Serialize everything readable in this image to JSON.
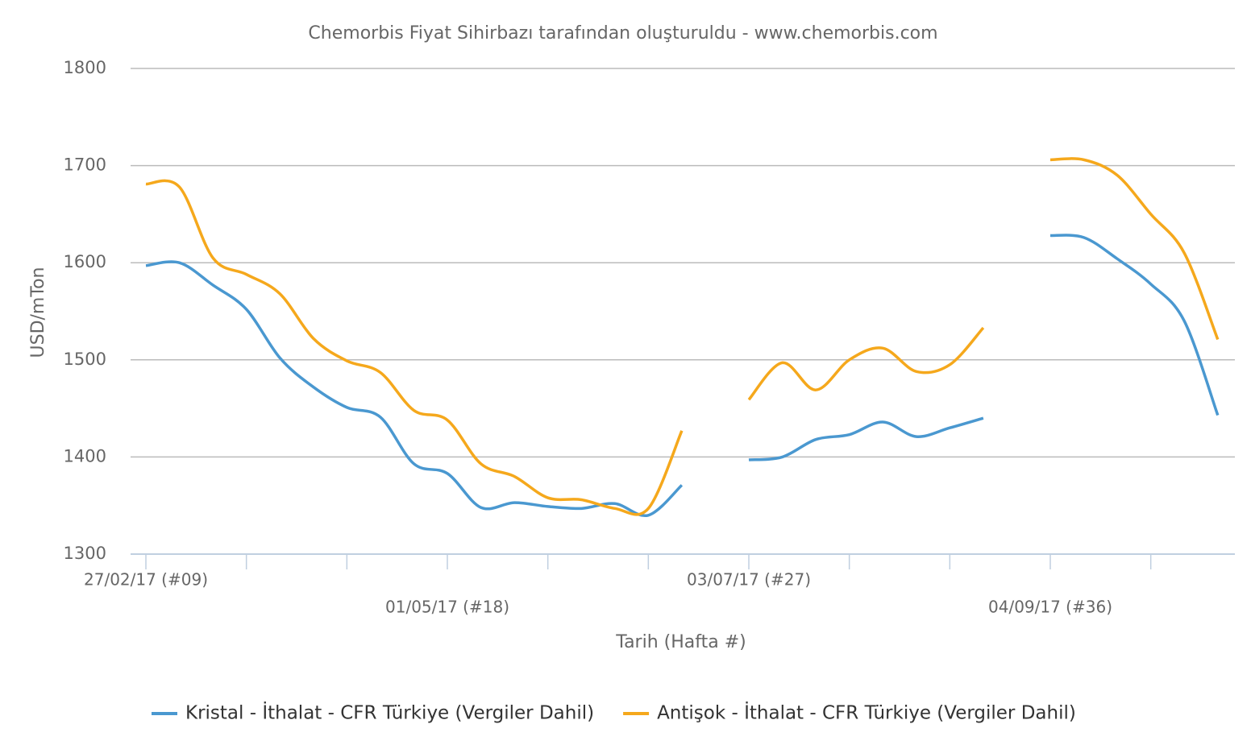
{
  "chart_data": {
    "type": "line",
    "title": "Chemorbis Fiyat Sihirbazı tarafından oluşturuldu - www.chemorbis.com",
    "x_label": "Tarih (Hafta #)",
    "y_label": "USD/mTon",
    "categories": [
      "27/02/17 (#09)",
      null,
      null,
      null,
      null,
      null,
      null,
      null,
      null,
      "01/05/17 (#18)",
      null,
      null,
      null,
      null,
      null,
      null,
      null,
      null,
      "03/07/17 (#27)",
      null,
      null,
      null,
      null,
      null,
      null,
      null,
      null,
      "04/09/17 (#36)",
      null,
      null,
      null,
      null,
      null
    ],
    "ylim": [
      1300,
      1800
    ],
    "yticks": [
      1300,
      1400,
      1500,
      1600,
      1700,
      1800
    ],
    "grid": true,
    "legend": "bottom",
    "series": [
      {
        "name": "Kristal - İthalat - CFR Türkiye (Vergiler Dahil)",
        "color": "#4a98d0",
        "values": [
          1597,
          1600,
          1577,
          1552,
          1502,
          1472,
          1451,
          1441,
          1393,
          1383,
          1348,
          1353,
          1349,
          1347,
          1352,
          1340,
          1371,
          null,
          1397,
          1400,
          1418,
          1423,
          1436,
          1421,
          1430,
          1440,
          null,
          1628,
          1626,
          1604,
          1578,
          1540,
          1443
        ]
      },
      {
        "name": "Antişok - İthalat - CFR Türkiye (Vergiler Dahil)",
        "color": "#f5a81c",
        "values": [
          1681,
          1678,
          1605,
          1588,
          1568,
          1522,
          1499,
          1487,
          1448,
          1438,
          1393,
          1380,
          1358,
          1356,
          1347,
          1347,
          1427,
          null,
          1459,
          1497,
          1469,
          1500,
          1512,
          1488,
          1495,
          1533,
          null,
          1706,
          1706,
          1690,
          1650,
          1610,
          1521
        ]
      }
    ]
  }
}
